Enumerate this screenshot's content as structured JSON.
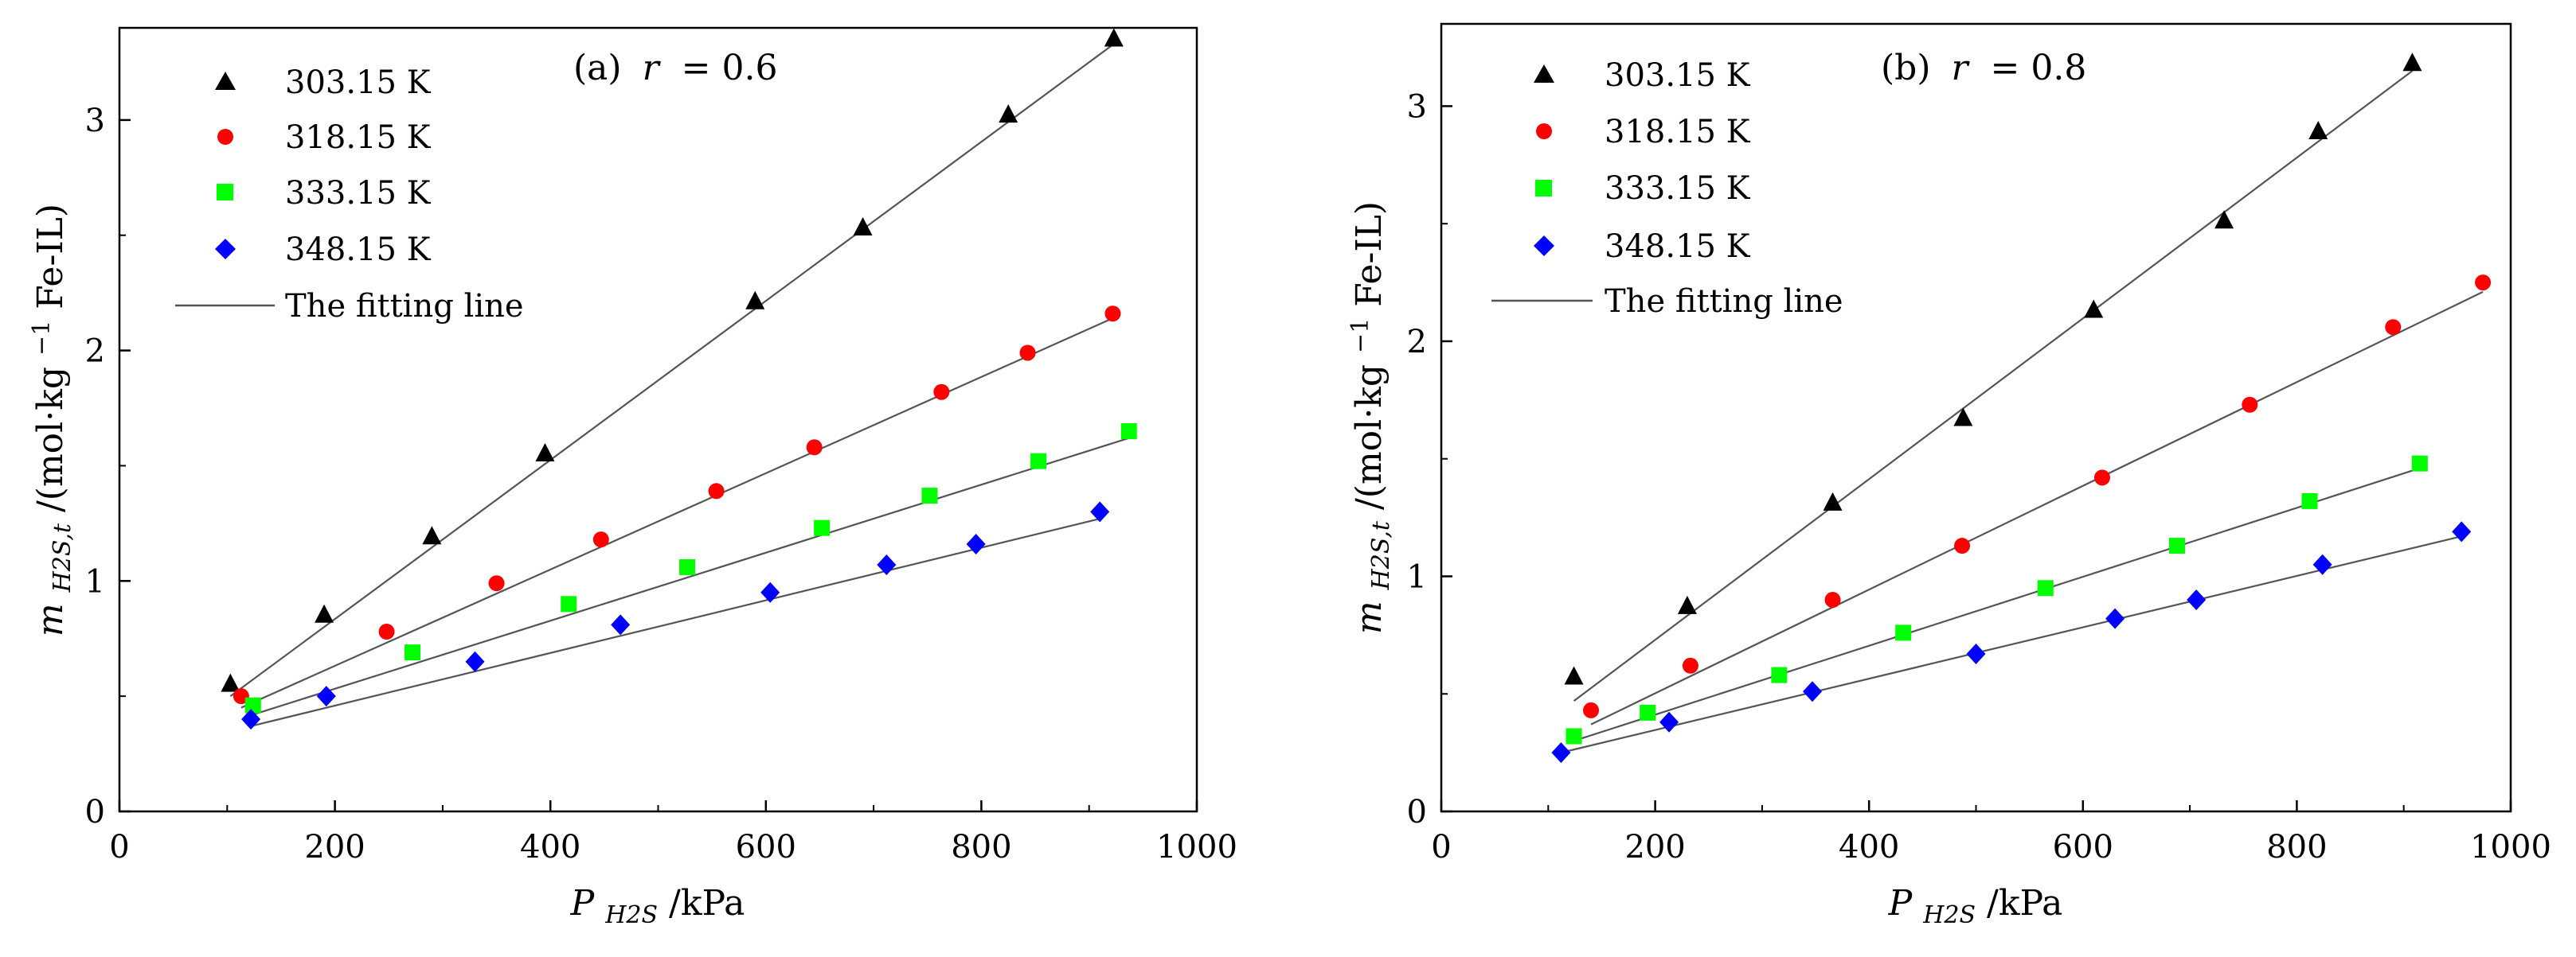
{
  "chart_data": [
    {
      "type": "scatter",
      "panel_label": "(a)",
      "title_prefix": "(a)",
      "title_param": "r",
      "title_value": " = 0.6",
      "xlabel": {
        "main": "P",
        "sub": "H2S",
        "tail": "/kPa"
      },
      "ylabel": {
        "main": "m",
        "sub": "H2S,t",
        "tail": "/(mol·kg",
        "sup": "−1",
        "end": "Fe-IL)"
      },
      "xlim": [
        0,
        1000
      ],
      "ylim": [
        0,
        3.4
      ],
      "xticks": [
        0,
        200,
        400,
        600,
        800,
        1000
      ],
      "yticks": [
        0,
        1,
        2,
        3
      ],
      "legend_position": "top-left",
      "series": [
        {
          "name": "303.15 K",
          "marker": "triangle",
          "color": "#000000",
          "x": [
            103,
            190,
            290,
            395,
            590,
            690,
            825,
            923
          ],
          "y": [
            0.55,
            0.85,
            1.19,
            1.55,
            2.21,
            2.53,
            3.02,
            3.35
          ],
          "fit": {
            "x": [
              103,
              923
            ],
            "y": [
              0.5,
              3.33
            ]
          }
        },
        {
          "name": "318.15 K",
          "marker": "circle",
          "color": "#ff0000",
          "x": [
            113,
            248,
            350,
            447,
            554,
            645,
            763,
            843,
            922
          ],
          "y": [
            0.5,
            0.78,
            0.99,
            1.18,
            1.39,
            1.58,
            1.82,
            1.99,
            2.16
          ],
          "fit": {
            "x": [
              113,
              922
            ],
            "y": [
              0.45,
              2.14
            ]
          }
        },
        {
          "name": "333.15 K",
          "marker": "square",
          "color": "#00ff00",
          "x": [
            124,
            272,
            417,
            527,
            652,
            752,
            853,
            937
          ],
          "y": [
            0.46,
            0.69,
            0.9,
            1.06,
            1.23,
            1.37,
            1.52,
            1.65
          ],
          "fit": {
            "x": [
              124,
              937
            ],
            "y": [
              0.42,
              1.62
            ]
          }
        },
        {
          "name": "348.15 K",
          "marker": "diamond",
          "color": "#0000ff",
          "x": [
            122,
            192,
            330,
            465,
            604,
            712,
            795,
            910
          ],
          "y": [
            0.4,
            0.5,
            0.65,
            0.81,
            0.95,
            1.07,
            1.16,
            1.3
          ],
          "fit": {
            "x": [
              122,
              910
            ],
            "y": [
              0.37,
              1.27
            ]
          }
        }
      ],
      "fit_label": "The fitting line"
    },
    {
      "type": "scatter",
      "panel_label": "(b)",
      "title_prefix": "(b)",
      "title_param": "r",
      "title_value": " = 0.8",
      "xlabel": {
        "main": "P",
        "sub": "H2S",
        "tail": "/kPa"
      },
      "ylabel": {
        "main": "m",
        "sub": "H2S,t",
        "tail": "/(mol·kg",
        "sup": "−1",
        "end": "Fe-IL)"
      },
      "xlim": [
        0,
        1000
      ],
      "ylim": [
        0,
        3.35
      ],
      "xticks": [
        0,
        200,
        400,
        600,
        800,
        1000
      ],
      "yticks": [
        0,
        1,
        2,
        3
      ],
      "legend_position": "top-left",
      "series": [
        {
          "name": "303.15 K",
          "marker": "triangle",
          "color": "#000000",
          "x": [
            124,
            230,
            366,
            488,
            610,
            732,
            820,
            908
          ],
          "y": [
            0.57,
            0.87,
            1.31,
            1.67,
            2.13,
            2.51,
            2.89,
            3.18
          ],
          "fit": {
            "x": [
              124,
              908
            ],
            "y": [
              0.47,
              3.15
            ]
          }
        },
        {
          "name": "318.15 K",
          "marker": "circle",
          "color": "#ff0000",
          "x": [
            140,
            233,
            366,
            487,
            618,
            756,
            890,
            974
          ],
          "y": [
            0.43,
            0.62,
            0.9,
            1.13,
            1.42,
            1.73,
            2.06,
            2.25
          ],
          "fit": {
            "x": [
              140,
              974
            ],
            "y": [
              0.37,
              2.21
            ]
          }
        },
        {
          "name": "333.15 K",
          "marker": "square",
          "color": "#00ff00",
          "x": [
            124,
            193,
            316,
            432,
            565,
            688,
            812,
            915
          ],
          "y": [
            0.32,
            0.42,
            0.58,
            0.76,
            0.95,
            1.13,
            1.32,
            1.48
          ],
          "fit": {
            "x": [
              124,
              915
            ],
            "y": [
              0.3,
              1.46
            ]
          }
        },
        {
          "name": "348.15 K",
          "marker": "diamond",
          "color": "#0000ff",
          "x": [
            112,
            213,
            347,
            500,
            630,
            706,
            824,
            954
          ],
          "y": [
            0.25,
            0.38,
            0.51,
            0.67,
            0.82,
            0.9,
            1.05,
            1.19
          ],
          "fit": {
            "x": [
              112,
              954
            ],
            "y": [
              0.25,
              1.17
            ]
          }
        }
      ],
      "fit_label": "The fitting line"
    }
  ]
}
